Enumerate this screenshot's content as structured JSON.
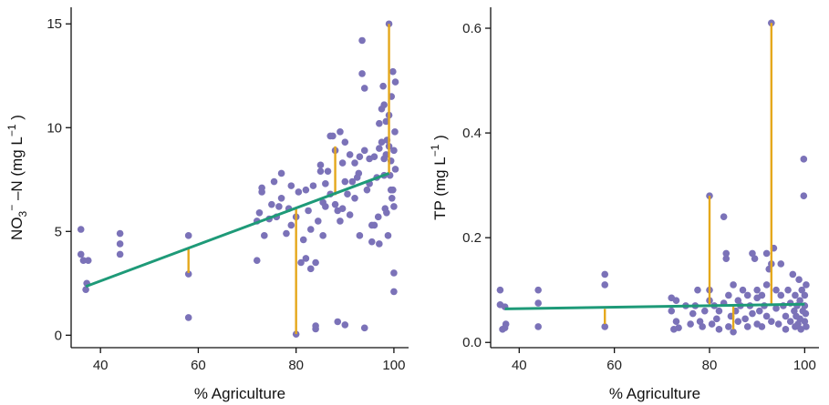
{
  "chart_data": [
    {
      "type": "scatter",
      "title": "",
      "xlabel": "% Agriculture",
      "ylabel_parts": {
        "main": "NO",
        "sub": "3",
        "sup": "−",
        "rest": " –N (mg L",
        "sup2": "−1",
        "end": " )"
      },
      "xlim": [
        34,
        103
      ],
      "ylim": [
        -0.6,
        15.8
      ],
      "xticks": [
        40,
        60,
        80,
        100
      ],
      "yticks": [
        0,
        5,
        10,
        15
      ],
      "xtick_labels": [
        "40",
        "60",
        "80",
        "100"
      ],
      "ytick_labels": [
        "0",
        "5",
        "10",
        "15"
      ],
      "grid": false,
      "colors": {
        "points": "#7b72b8",
        "residuals": "#e5a81c",
        "fit": "#1e9a78"
      },
      "fit_line": {
        "x": [
          37,
          99
        ],
        "y": [
          2.35,
          7.8
        ]
      },
      "residual_segments": [
        {
          "x": 58,
          "y0": 3.0,
          "y1": 4.2
        },
        {
          "x": 80,
          "y0": 0.05,
          "y1": 6.1
        },
        {
          "x": 88,
          "y0": 6.75,
          "y1": 9.1
        },
        {
          "x": 99,
          "y0": 7.8,
          "y1": 15.0
        }
      ],
      "points": [
        [
          36,
          5.1
        ],
        [
          36,
          3.9
        ],
        [
          36.5,
          3.6
        ],
        [
          37,
          2.2
        ],
        [
          37.2,
          2.5
        ],
        [
          37.5,
          3.6
        ],
        [
          44,
          4.9
        ],
        [
          44,
          4.4
        ],
        [
          44,
          3.9
        ],
        [
          58,
          4.8
        ],
        [
          58,
          2.95
        ],
        [
          58,
          0.85
        ],
        [
          72,
          3.6
        ],
        [
          72,
          5.5
        ],
        [
          72.5,
          5.9
        ],
        [
          73,
          6.9
        ],
        [
          73,
          7.1
        ],
        [
          73.5,
          4.8
        ],
        [
          74.5,
          5.6
        ],
        [
          75,
          6.3
        ],
        [
          75.5,
          7.4
        ],
        [
          76,
          5.7
        ],
        [
          76.5,
          6.2
        ],
        [
          77,
          6.6
        ],
        [
          77,
          7.8
        ],
        [
          78,
          4.9
        ],
        [
          78.5,
          6.1
        ],
        [
          79,
          7.2
        ],
        [
          79,
          5.3
        ],
        [
          80,
          0.05
        ],
        [
          80,
          5.7
        ],
        [
          80.5,
          6.9
        ],
        [
          81,
          3.5
        ],
        [
          81.5,
          4.6
        ],
        [
          82,
          7.0
        ],
        [
          82,
          3.7
        ],
        [
          82.5,
          6.0
        ],
        [
          83,
          5.1
        ],
        [
          83,
          3.2
        ],
        [
          83.5,
          7.2
        ],
        [
          84,
          0.3
        ],
        [
          84,
          0.45
        ],
        [
          84,
          3.5
        ],
        [
          84.5,
          5.5
        ],
        [
          85,
          7.9
        ],
        [
          85,
          8.2
        ],
        [
          85.5,
          6.4
        ],
        [
          85.5,
          4.8
        ],
        [
          86,
          6.2
        ],
        [
          86,
          7.3
        ],
        [
          86.5,
          7.9
        ],
        [
          87,
          6.8
        ],
        [
          87,
          9.6
        ],
        [
          87.5,
          9.6
        ],
        [
          88,
          8.9
        ],
        [
          88,
          6.3
        ],
        [
          88.5,
          0.65
        ],
        [
          88.5,
          6.0
        ],
        [
          89,
          9.8
        ],
        [
          89,
          5.5
        ],
        [
          89.5,
          8.3
        ],
        [
          89.5,
          6.1
        ],
        [
          90,
          7.4
        ],
        [
          90,
          9.3
        ],
        [
          90,
          0.5
        ],
        [
          90.5,
          6.8
        ],
        [
          91,
          8.7
        ],
        [
          91,
          5.8
        ],
        [
          91.5,
          7.4
        ],
        [
          92,
          6.6
        ],
        [
          92,
          8.3
        ],
        [
          92.5,
          7.6
        ],
        [
          93,
          8.6
        ],
        [
          93,
          4.8
        ],
        [
          93.5,
          14.2
        ],
        [
          93.5,
          12.6
        ],
        [
          94,
          11.9
        ],
        [
          94,
          8.9
        ],
        [
          94,
          0.35
        ],
        [
          94.5,
          7.0
        ],
        [
          95,
          8.5
        ],
        [
          95,
          7.3
        ],
        [
          95.5,
          5.3
        ],
        [
          95.5,
          4.5
        ],
        [
          96,
          5.3
        ],
        [
          96,
          8.6
        ],
        [
          96.5,
          7.6
        ],
        [
          97,
          10.2
        ],
        [
          97,
          9.0
        ],
        [
          97,
          4.4
        ],
        [
          97.5,
          9.3
        ],
        [
          97.5,
          10.9
        ],
        [
          97.8,
          12.0
        ],
        [
          98,
          11.1
        ],
        [
          98,
          8.5
        ],
        [
          98,
          7.7
        ],
        [
          98.2,
          6.1
        ],
        [
          98.4,
          8.7
        ],
        [
          98.5,
          5.9
        ],
        [
          98.6,
          9.4
        ],
        [
          98.8,
          4.8
        ],
        [
          99,
          15.0
        ],
        [
          99,
          10.6
        ],
        [
          99,
          9.1
        ],
        [
          99.2,
          7.7
        ],
        [
          99.4,
          8.4
        ],
        [
          99.5,
          11.5
        ],
        [
          99.6,
          6.6
        ],
        [
          99.8,
          12.7
        ],
        [
          99.8,
          7.0
        ],
        [
          100,
          8.9
        ],
        [
          100,
          6.2
        ],
        [
          100,
          3.0
        ],
        [
          100,
          2.1
        ],
        [
          100.2,
          9.8
        ],
        [
          100.3,
          8.0
        ],
        [
          100.3,
          12.2
        ],
        [
          99.4,
          7.0
        ],
        [
          98.4,
          10.3
        ],
        [
          96.8,
          5.7
        ],
        [
          92.8,
          7.8
        ]
      ]
    },
    {
      "type": "scatter",
      "title": "",
      "xlabel": "% Agriculture",
      "ylabel_parts": {
        "main": "TP (mg L",
        "sup": "−1",
        "end": " )"
      },
      "xlim": [
        34,
        103
      ],
      "ylim": [
        -0.01,
        0.64
      ],
      "xticks": [
        40,
        60,
        80,
        100
      ],
      "yticks": [
        0.0,
        0.2,
        0.4,
        0.6
      ],
      "xtick_labels": [
        "40",
        "60",
        "80",
        "100"
      ],
      "ytick_labels": [
        "0.0",
        "0.2",
        "0.4",
        "0.6"
      ],
      "grid": false,
      "colors": {
        "points": "#7b72b8",
        "residuals": "#e5a81c",
        "fit": "#1e9a78"
      },
      "fit_line": {
        "x": [
          37,
          100
        ],
        "y": [
          0.064,
          0.073
        ]
      },
      "residual_segments": [
        {
          "x": 58,
          "y0": 0.035,
          "y1": 0.064
        },
        {
          "x": 80,
          "y0": 0.07,
          "y1": 0.28
        },
        {
          "x": 85,
          "y0": 0.025,
          "y1": 0.07
        },
        {
          "x": 93,
          "y0": 0.072,
          "y1": 0.61
        }
      ],
      "points": [
        [
          36,
          0.1
        ],
        [
          36,
          0.072
        ],
        [
          36.5,
          0.025
        ],
        [
          37,
          0.028
        ],
        [
          37,
          0.068
        ],
        [
          37.2,
          0.035
        ],
        [
          44,
          0.1
        ],
        [
          44,
          0.075
        ],
        [
          44,
          0.03
        ],
        [
          58,
          0.13
        ],
        [
          58,
          0.11
        ],
        [
          58,
          0.03
        ],
        [
          72,
          0.085
        ],
        [
          72,
          0.06
        ],
        [
          72.5,
          0.025
        ],
        [
          73,
          0.08
        ],
        [
          73,
          0.04
        ],
        [
          73.5,
          0.028
        ],
        [
          75,
          0.07
        ],
        [
          76,
          0.035
        ],
        [
          76.5,
          0.055
        ],
        [
          77,
          0.07
        ],
        [
          77.5,
          0.1
        ],
        [
          78,
          0.04
        ],
        [
          78.5,
          0.03
        ],
        [
          79,
          0.06
        ],
        [
          80,
          0.28
        ],
        [
          80,
          0.1
        ],
        [
          80,
          0.08
        ],
        [
          80.5,
          0.035
        ],
        [
          81,
          0.07
        ],
        [
          81.5,
          0.045
        ],
        [
          82,
          0.06
        ],
        [
          82,
          0.025
        ],
        [
          83,
          0.24
        ],
        [
          83,
          0.075
        ],
        [
          83.5,
          0.17
        ],
        [
          83.5,
          0.16
        ],
        [
          84,
          0.09
        ],
        [
          84,
          0.03
        ],
        [
          84.5,
          0.05
        ],
        [
          85,
          0.02
        ],
        [
          85,
          0.11
        ],
        [
          85.5,
          0.06
        ],
        [
          86,
          0.08
        ],
        [
          86,
          0.04
        ],
        [
          86.5,
          0.07
        ],
        [
          87,
          0.1
        ],
        [
          87.5,
          0.045
        ],
        [
          88,
          0.09
        ],
        [
          88,
          0.03
        ],
        [
          88.5,
          0.07
        ],
        [
          89,
          0.17
        ],
        [
          89,
          0.055
        ],
        [
          89.5,
          0.16
        ],
        [
          90,
          0.1
        ],
        [
          90,
          0.085
        ],
        [
          90,
          0.035
        ],
        [
          90.5,
          0.06
        ],
        [
          91,
          0.09
        ],
        [
          91,
          0.03
        ],
        [
          91.5,
          0.07
        ],
        [
          92,
          0.17
        ],
        [
          92,
          0.11
        ],
        [
          92,
          0.05
        ],
        [
          92.5,
          0.14
        ],
        [
          93,
          0.61
        ],
        [
          93,
          0.15
        ],
        [
          93,
          0.04
        ],
        [
          93.5,
          0.18
        ],
        [
          94,
          0.1
        ],
        [
          94,
          0.065
        ],
        [
          94.5,
          0.035
        ],
        [
          95,
          0.15
        ],
        [
          95,
          0.09
        ],
        [
          95.5,
          0.07
        ],
        [
          96,
          0.05
        ],
        [
          96,
          0.025
        ],
        [
          96.5,
          0.1
        ],
        [
          97,
          0.075
        ],
        [
          97,
          0.04
        ],
        [
          97.5,
          0.13
        ],
        [
          97.8,
          0.06
        ],
        [
          98,
          0.09
        ],
        [
          98,
          0.03
        ],
        [
          98.2,
          0.05
        ],
        [
          98.4,
          0.07
        ],
        [
          98.6,
          0.035
        ],
        [
          98.8,
          0.12
        ],
        [
          99,
          0.08
        ],
        [
          99,
          0.045
        ],
        [
          99.2,
          0.025
        ],
        [
          99.4,
          0.1
        ],
        [
          99.6,
          0.06
        ],
        [
          99.8,
          0.35
        ],
        [
          99.8,
          0.28
        ],
        [
          100,
          0.09
        ],
        [
          100,
          0.07
        ],
        [
          100,
          0.04
        ],
        [
          100.2,
          0.055
        ],
        [
          100.3,
          0.11
        ],
        [
          100.3,
          0.03
        ]
      ]
    }
  ]
}
